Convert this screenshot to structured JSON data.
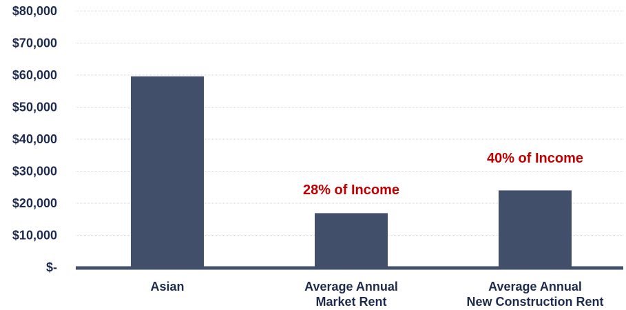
{
  "chart_data": {
    "type": "bar",
    "categories": [
      [
        "Asian"
      ],
      [
        "Average Annual",
        "Market Rent"
      ],
      [
        "Average Annual",
        "New Construction Rent"
      ]
    ],
    "values": [
      59600,
      16900,
      24000
    ],
    "ylim": [
      0,
      80000
    ],
    "y_ticks": [
      {
        "value": 0,
        "label": "$-"
      },
      {
        "value": 10000,
        "label": "$10,000"
      },
      {
        "value": 20000,
        "label": "$20,000"
      },
      {
        "value": 30000,
        "label": "$30,000"
      },
      {
        "value": 40000,
        "label": "$40,000"
      },
      {
        "value": 50000,
        "label": "$50,000"
      },
      {
        "value": 60000,
        "label": "$60,000"
      },
      {
        "value": 70000,
        "label": "$70,000"
      },
      {
        "value": 80000,
        "label": "$80,000"
      }
    ],
    "annotations": [
      {
        "category_index": 1,
        "text": "28% of Income"
      },
      {
        "category_index": 2,
        "text": "40% of Income"
      }
    ],
    "grid": true,
    "legend": "none",
    "colors": {
      "bar": "#414f6a",
      "text": "#1f2b4d",
      "annotation": "#c00000",
      "grid": "#d9d9d9",
      "axis": "#414f6a"
    }
  }
}
